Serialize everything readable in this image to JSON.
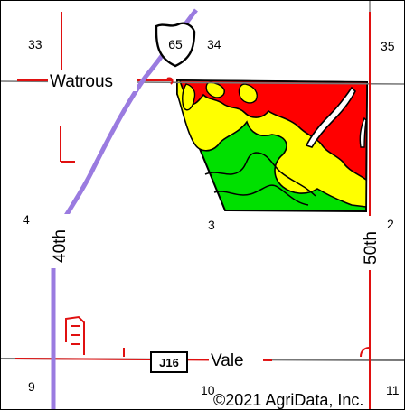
{
  "map": {
    "section_numbers": [
      "33",
      "34",
      "35",
      "4",
      "3",
      "2",
      "9",
      "10",
      "11"
    ],
    "road_labels": {
      "watrous": "Watrous",
      "vale": "Vale",
      "road_40th": "40th",
      "road_50th": "50th"
    },
    "shields": {
      "us_highway": "65",
      "county_route": "J16"
    },
    "copyright": "©2021 AgriData, Inc.",
    "colors": {
      "section_line": "#e01010",
      "highway": "#9a7be0",
      "road_gray": "#777777",
      "zone_red": "#ff0000",
      "zone_yellow": "#ffff00",
      "zone_green": "#00e000",
      "outline": "#000000"
    }
  }
}
